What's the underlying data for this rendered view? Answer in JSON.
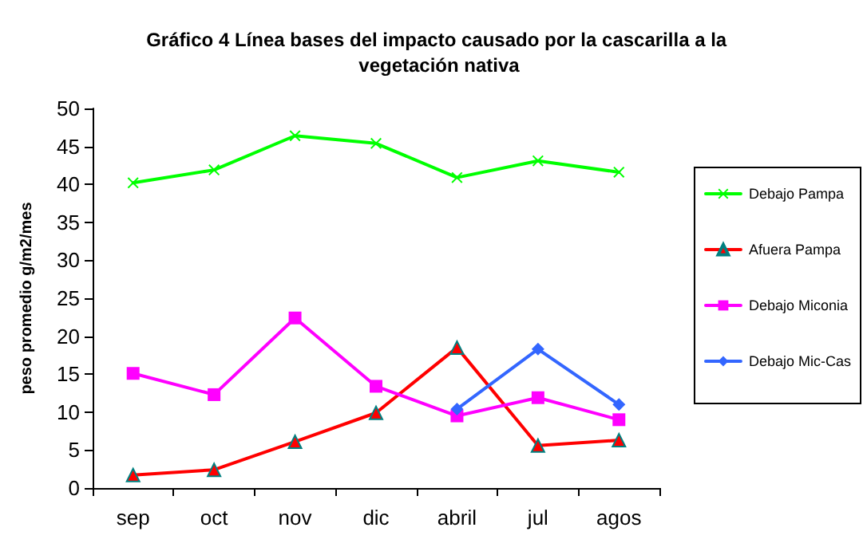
{
  "chart_data": {
    "type": "line",
    "title": "Gráfico 4 Línea bases del impacto causado por la cascarilla a la vegetación nativa",
    "ylabel": "peso promedio g/m2/mes",
    "categories": [
      "sep",
      "oct",
      "nov",
      "dic",
      "abril",
      "jul",
      "agos"
    ],
    "series": [
      {
        "name": "Debajo Pampa",
        "color": "#00ff00",
        "marker": "cross",
        "values": [
          40.2,
          41.9,
          46.4,
          45.4,
          40.9,
          43.1,
          41.6
        ]
      },
      {
        "name": "Afuera Pampa",
        "color": "#ff0000",
        "marker": "triangle",
        "values": [
          1.7,
          2.4,
          6.1,
          9.9,
          18.5,
          5.6,
          6.3
        ]
      },
      {
        "name": "Debajo Miconia",
        "color": "#ff00ff",
        "marker": "square",
        "values": [
          15.1,
          12.3,
          22.4,
          13.4,
          9.5,
          11.9,
          9.0
        ]
      },
      {
        "name": "Debajo Mic-Cas",
        "color": "#3366ff",
        "marker": "diamond",
        "values": [
          null,
          null,
          null,
          null,
          10.4,
          18.3,
          11.0
        ]
      }
    ],
    "ylim": [
      0,
      50
    ],
    "yticks": [
      0,
      5,
      10,
      15,
      20,
      25,
      30,
      35,
      40,
      45,
      50
    ],
    "grid": false,
    "legend": "right",
    "line_style": "solid"
  }
}
